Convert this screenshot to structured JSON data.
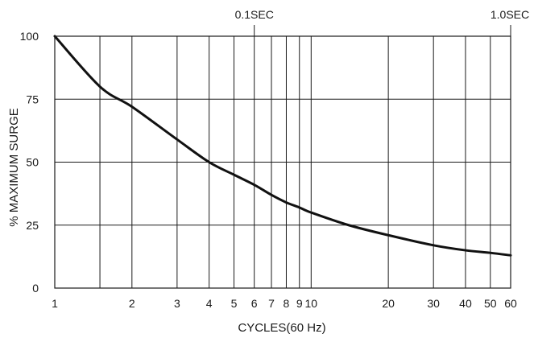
{
  "chart_data": {
    "type": "line",
    "xlabel": "CYCLES(60 Hz)",
    "ylabel": "% MAXIMUM SURGE",
    "x_scale": "log",
    "xlim": [
      1,
      60
    ],
    "ylim": [
      0,
      100
    ],
    "grid": true,
    "x_ticks": [
      1,
      2,
      3,
      4,
      5,
      6,
      7,
      8,
      9,
      10,
      20,
      30,
      40,
      50,
      60
    ],
    "x_tick_labels": [
      "1",
      "2",
      "3",
      "4",
      "5",
      "6",
      "7",
      "8",
      "9",
      "10",
      "20",
      "30",
      "40",
      "50",
      "60"
    ],
    "x_minor_gridlines": [
      1.5
    ],
    "y_ticks": [
      0,
      25,
      50,
      75,
      100
    ],
    "y_tick_labels": [
      "0",
      "25",
      "50",
      "75",
      "100"
    ],
    "top_annotations": [
      {
        "x": 6,
        "label": "0.1SEC"
      },
      {
        "x": 60,
        "label": "1.0SEC"
      }
    ],
    "series": [
      {
        "x": [
          1,
          1.5,
          2,
          3,
          4,
          5,
          6,
          7,
          8,
          9,
          10,
          14,
          20,
          30,
          40,
          50,
          60
        ],
        "y": [
          100,
          80,
          72,
          59,
          50,
          45,
          41,
          37,
          34,
          32,
          30,
          25,
          21,
          17,
          15,
          14,
          13
        ]
      }
    ]
  }
}
